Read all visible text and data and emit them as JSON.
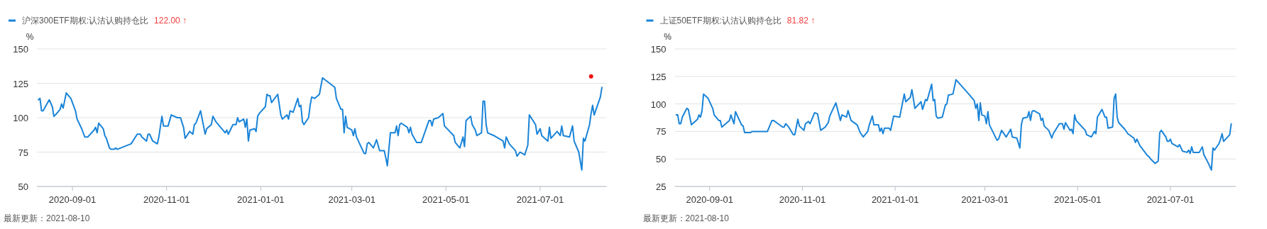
{
  "chart_data": [
    {
      "type": "line",
      "ylabel": "%",
      "legend": "top left",
      "grid": "y",
      "xlim": [
        "2020-08-09",
        "2021-08-13"
      ],
      "xticks": [
        "2020-09-01",
        "2020-11-01",
        "2021-01-01",
        "2021-03-01",
        "2021-05-01",
        "2021-07-01"
      ],
      "ylim": [
        50,
        150
      ],
      "yticks": [
        50,
        75,
        100,
        125,
        150
      ],
      "annotations": [
        "122.00 ↑",
        "最新更新：2021-08-10"
      ],
      "series": [
        {
          "name": "沪深300ETF期权:认沽认购持仓比",
          "color": "#1a84d8",
          "x": [
            "2020-08-10",
            "2020-08-11",
            "2020-08-12",
            "2020-08-13",
            "2020-08-17",
            "2020-08-19",
            "2020-08-20",
            "2020-08-21",
            "2020-08-24",
            "2020-08-25",
            "2020-08-26",
            "2020-08-28",
            "2020-08-31",
            "2020-09-03",
            "2020-09-04",
            "2020-09-07",
            "2020-09-09",
            "2020-09-11",
            "2020-09-15",
            "2020-09-16",
            "2020-09-17",
            "2020-09-18",
            "2020-09-21",
            "2020-09-22",
            "2020-09-23",
            "2020-09-25",
            "2020-09-26",
            "2020-09-28",
            "2020-09-29",
            "2020-09-30",
            "2020-10-09",
            "2020-10-13",
            "2020-10-15",
            "2020-10-16",
            "2020-10-19",
            "2020-10-20",
            "2020-10-21",
            "2020-10-23",
            "2020-10-26",
            "2020-10-27",
            "2020-10-29",
            "2020-10-30",
            "2020-11-02",
            "2020-11-04",
            "2020-11-08",
            "2020-11-10",
            "2020-11-12",
            "2020-11-13",
            "2020-11-16",
            "2020-11-18",
            "2020-11-19",
            "2020-11-20",
            "2020-11-23",
            "2020-11-26",
            "2020-11-27",
            "2020-11-30",
            "2020-12-01",
            "2020-12-03",
            "2020-12-09",
            "2020-12-10",
            "2020-12-11",
            "2020-12-14",
            "2020-12-16",
            "2020-12-17",
            "2020-12-18",
            "2020-12-21",
            "2020-12-22",
            "2020-12-23",
            "2020-12-24",
            "2020-12-25",
            "2020-12-28",
            "2020-12-29",
            "2020-12-30",
            "2020-12-31",
            "2021-01-04",
            "2021-01-05",
            "2021-01-06",
            "2021-01-07",
            "2021-01-08",
            "2021-01-12",
            "2021-01-14",
            "2021-01-15",
            "2021-01-18",
            "2021-01-19",
            "2021-01-20",
            "2021-01-22",
            "2021-01-25",
            "2021-01-26",
            "2021-01-27",
            "2021-01-28",
            "2021-01-29",
            "2021-02-01",
            "2021-02-02",
            "2021-02-03",
            "2021-02-05",
            "2021-02-08",
            "2021-02-10",
            "2021-02-18",
            "2021-02-19",
            "2021-02-22",
            "2021-02-23",
            "2021-02-24",
            "2021-02-25",
            "2021-02-26",
            "2021-03-01",
            "2021-03-02",
            "2021-03-03",
            "2021-03-04",
            "2021-03-09",
            "2021-03-10",
            "2021-03-11",
            "2021-03-12",
            "2021-03-15",
            "2021-03-17",
            "2021-03-19",
            "2021-03-22",
            "2021-03-23",
            "2021-03-24",
            "2021-03-26",
            "2021-03-29",
            "2021-03-30",
            "2021-03-31",
            "2021-04-01",
            "2021-04-02",
            "2021-04-06",
            "2021-04-07",
            "2021-04-08",
            "2021-04-09",
            "2021-04-12",
            "2021-04-15",
            "2021-04-20",
            "2021-04-21",
            "2021-04-22",
            "2021-04-23",
            "2021-04-26",
            "2021-04-29",
            "2021-04-30",
            "2021-05-06",
            "2021-05-07",
            "2021-05-10",
            "2021-05-12",
            "2021-05-13",
            "2021-05-14",
            "2021-05-17",
            "2021-05-18",
            "2021-05-20",
            "2021-05-21",
            "2021-05-24",
            "2021-05-25",
            "2021-05-26",
            "2021-05-27",
            "2021-05-28",
            "2021-06-01",
            "2021-06-07",
            "2021-06-08",
            "2021-06-09",
            "2021-06-11",
            "2021-06-15",
            "2021-06-16",
            "2021-06-18",
            "2021-06-21",
            "2021-06-23",
            "2021-06-24",
            "2021-06-28",
            "2021-06-29",
            "2021-07-01",
            "2021-07-02",
            "2021-07-06",
            "2021-07-07",
            "2021-07-08",
            "2021-07-12",
            "2021-07-14",
            "2021-07-15",
            "2021-07-16",
            "2021-07-20",
            "2021-07-22",
            "2021-07-23",
            "2021-07-26",
            "2021-07-28",
            "2021-07-29",
            "2021-07-30",
            "2021-08-02",
            "2021-08-03",
            "2021-08-04",
            "2021-08-05",
            "2021-08-09",
            "2021-08-10"
          ],
          "values": [
            113,
            114,
            105,
            105,
            113,
            108,
            101,
            102,
            106,
            110,
            107,
            118,
            114,
            105,
            99,
            92,
            86,
            86,
            91,
            93,
            89,
            96,
            92,
            87,
            85,
            78,
            77,
            77,
            78,
            77,
            81,
            88,
            88,
            86,
            83,
            88,
            88,
            83,
            81,
            86,
            101,
            94,
            94,
            102,
            100,
            100,
            93,
            85,
            90,
            88,
            95,
            96,
            105,
            88,
            92,
            95,
            101,
            97,
            89,
            91,
            88,
            95,
            95,
            100,
            97,
            99,
            93,
            99,
            83,
            91,
            92,
            90,
            101,
            103,
            108,
            117,
            116,
            116,
            111,
            117,
            102,
            99,
            102,
            99,
            105,
            104,
            114,
            108,
            109,
            97,
            95,
            100,
            109,
            115,
            114,
            117,
            129,
            122,
            114,
            106,
            106,
            89,
            101,
            93,
            91,
            87,
            92,
            86,
            74,
            74,
            81,
            82,
            78,
            84,
            76,
            76,
            71,
            65,
            89,
            89,
            94,
            87,
            95,
            96,
            93,
            89,
            93,
            88,
            82,
            82,
            98,
            98,
            94,
            99,
            100,
            103,
            94,
            87,
            82,
            78,
            86,
            79,
            98,
            101,
            95,
            91,
            87,
            89,
            112,
            112,
            95,
            89,
            87,
            83,
            78,
            86,
            81,
            76,
            72,
            75,
            73,
            80,
            102,
            95,
            88,
            92,
            87,
            83,
            93,
            85,
            90,
            87,
            94,
            87,
            86,
            94,
            83,
            75,
            62,
            85,
            83,
            95,
            103,
            109,
            102,
            115,
            122
          ]
        },
        {
          "type": "scatter",
          "color": "#ee1111",
          "x": [
            "2021-08-03"
          ],
          "values": [
            130
          ]
        }
      ]
    },
    {
      "type": "line",
      "ylabel": "%",
      "legend": "top left",
      "grid": "y",
      "xlim": [
        "2020-08-09",
        "2021-08-13"
      ],
      "xticks": [
        "2020-09-01",
        "2020-11-01",
        "2021-01-01",
        "2021-03-01",
        "2021-05-01",
        "2021-07-01"
      ],
      "ylim": [
        25,
        150
      ],
      "yticks": [
        25,
        50,
        75,
        100,
        125,
        150
      ],
      "annotations": [
        "81.82 ↑",
        "最新更新：2021-08-10"
      ],
      "series": [
        {
          "name": "上证50ETF期权:认沽认购持仓比",
          "color": "#1a84d8",
          "x": [
            "2020-08-10",
            "2020-08-11",
            "2020-08-12",
            "2020-08-13",
            "2020-08-14",
            "2020-08-17",
            "2020-08-18",
            "2020-08-20",
            "2020-08-24",
            "2020-08-25",
            "2020-08-26",
            "2020-08-27",
            "2020-08-28",
            "2020-08-31",
            "2020-09-03",
            "2020-09-04",
            "2020-09-07",
            "2020-09-08",
            "2020-09-09",
            "2020-09-14",
            "2020-09-15",
            "2020-09-17",
            "2020-09-18",
            "2020-09-22",
            "2020-09-23",
            "2020-09-24",
            "2020-09-28",
            "2020-09-29",
            "2020-09-30",
            "2020-10-09",
            "2020-10-12",
            "2020-10-13",
            "2020-10-15",
            "2020-10-19",
            "2020-10-20",
            "2020-10-21",
            "2020-10-23",
            "2020-10-26",
            "2020-10-27",
            "2020-10-29",
            "2020-10-30",
            "2020-11-02",
            "2020-11-03",
            "2020-11-05",
            "2020-11-06",
            "2020-11-09",
            "2020-11-11",
            "2020-11-13",
            "2020-11-16",
            "2020-11-18",
            "2020-11-19",
            "2020-11-23",
            "2020-11-26",
            "2020-11-27",
            "2020-11-30",
            "2020-12-01",
            "2020-12-03",
            "2020-12-07",
            "2020-12-09",
            "2020-12-11",
            "2020-12-14",
            "2020-12-15",
            "2020-12-17",
            "2020-12-18",
            "2020-12-21",
            "2020-12-22",
            "2020-12-23",
            "2020-12-24",
            "2020-12-25",
            "2020-12-28",
            "2020-12-29",
            "2020-12-31",
            "2021-01-04",
            "2021-01-07",
            "2021-01-08",
            "2021-01-11",
            "2021-01-12",
            "2021-01-14",
            "2021-01-18",
            "2021-01-19",
            "2021-01-21",
            "2021-01-22",
            "2021-01-25",
            "2021-01-26",
            "2021-01-27",
            "2021-01-28",
            "2021-01-29",
            "2021-02-01",
            "2021-02-03",
            "2021-02-04",
            "2021-02-05",
            "2021-02-08",
            "2021-02-10",
            "2021-02-19",
            "2021-02-22",
            "2021-02-23",
            "2021-02-24",
            "2021-02-25",
            "2021-02-26",
            "2021-02-27",
            "2021-03-01",
            "2021-03-02",
            "2021-03-03",
            "2021-03-04",
            "2021-03-09",
            "2021-03-10",
            "2021-03-12",
            "2021-03-15",
            "2021-03-18",
            "2021-03-19",
            "2021-03-22",
            "2021-03-24",
            "2021-03-25",
            "2021-03-26",
            "2021-03-29",
            "2021-03-30",
            "2021-03-31",
            "2021-04-01",
            "2021-04-02",
            "2021-04-06",
            "2021-04-07",
            "2021-04-08",
            "2021-04-09",
            "2021-04-12",
            "2021-04-14",
            "2021-04-15",
            "2021-04-19",
            "2021-04-21",
            "2021-04-22",
            "2021-04-23",
            "2021-04-26",
            "2021-04-27",
            "2021-04-28",
            "2021-04-29",
            "2021-04-30",
            "2021-05-06",
            "2021-05-07",
            "2021-05-10",
            "2021-05-12",
            "2021-05-13",
            "2021-05-14",
            "2021-05-17",
            "2021-05-19",
            "2021-05-20",
            "2021-05-21",
            "2021-05-24",
            "2021-05-25",
            "2021-05-26",
            "2021-05-27",
            "2021-05-28",
            "2021-06-01",
            "2021-06-03",
            "2021-06-07",
            "2021-06-08",
            "2021-06-09",
            "2021-06-11",
            "2021-06-16",
            "2021-06-17",
            "2021-06-18",
            "2021-06-21",
            "2021-06-23",
            "2021-06-24",
            "2021-06-25",
            "2021-06-28",
            "2021-06-29",
            "2021-06-30",
            "2021-07-01",
            "2021-07-02",
            "2021-07-06",
            "2021-07-07",
            "2021-07-09",
            "2021-07-12",
            "2021-07-13",
            "2021-07-14",
            "2021-07-15",
            "2021-07-16",
            "2021-07-20",
            "2021-07-22",
            "2021-07-23",
            "2021-07-26",
            "2021-07-28",
            "2021-07-29",
            "2021-07-30",
            "2021-08-02",
            "2021-08-03",
            "2021-08-04",
            "2021-08-05",
            "2021-08-09",
            "2021-08-10"
          ],
          "values": [
            90,
            90,
            82,
            82,
            88,
            96,
            95,
            81,
            86,
            90,
            88,
            94,
            109,
            105,
            96,
            90,
            85,
            85,
            79,
            85,
            90,
            82,
            93,
            81,
            80,
            74,
            74,
            75,
            75,
            75,
            85,
            85,
            83,
            79,
            79,
            82,
            79,
            72,
            72,
            86,
            80,
            76,
            82,
            84,
            82,
            92,
            91,
            76,
            79,
            83,
            89,
            101,
            85,
            90,
            88,
            94,
            85,
            81,
            74,
            70,
            75,
            81,
            89,
            81,
            81,
            75,
            78,
            73,
            78,
            78,
            76,
            89,
            88,
            109,
            102,
            106,
            113,
            96,
            102,
            95,
            104,
            103,
            118,
            103,
            104,
            89,
            87,
            88,
            99,
            100,
            108,
            109,
            122,
            108,
            103,
            96,
            100,
            85,
            101,
            90,
            89,
            82,
            93,
            81,
            67,
            68,
            76,
            70,
            77,
            70,
            69,
            60,
            81,
            87,
            88,
            93,
            85,
            93,
            94,
            91,
            85,
            87,
            80,
            76,
            69,
            73,
            82,
            82,
            77,
            83,
            76,
            77,
            73,
            90,
            85,
            76,
            72,
            70,
            75,
            73,
            88,
            95,
            88,
            88,
            78,
            79,
            105,
            109,
            88,
            83,
            77,
            73,
            69,
            65,
            68,
            62,
            53,
            52,
            50,
            46,
            48,
            74,
            76,
            70,
            66,
            66,
            68,
            64,
            61,
            63,
            57,
            56,
            58,
            55,
            61,
            56,
            56,
            61,
            54,
            46,
            40,
            60,
            58,
            64,
            68,
            73,
            66,
            72,
            81.82
          ]
        }
      ]
    }
  ]
}
